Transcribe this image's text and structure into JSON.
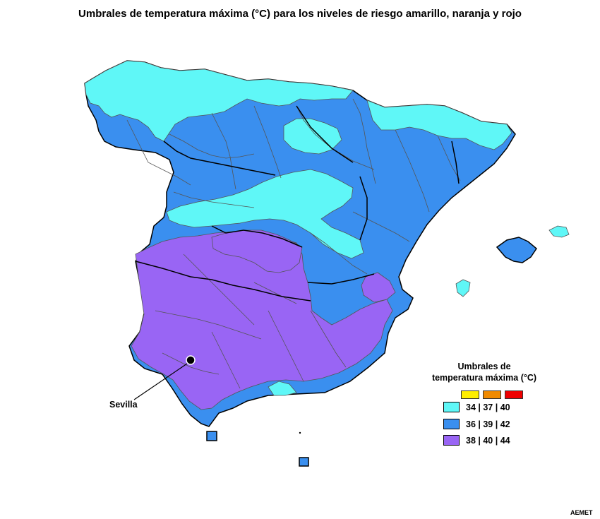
{
  "title": "Umbrales de temperatura máxima (°C) para los niveles de riesgo amarillo, naranja y rojo",
  "colors": {
    "cyan": "#5ff7f7",
    "blue": "#3a8fef",
    "purple": "#9965f4",
    "amarillo": "#ffee00",
    "naranja": "#f08a00",
    "rojo": "#ee0000",
    "border": "#000000"
  },
  "legend": {
    "title_line1": "Umbrales de",
    "title_line2": "temperatura máxima (°C)",
    "risk_levels": [
      "amarillo",
      "naranja",
      "rojo"
    ],
    "items": [
      {
        "label": "34 | 37 | 40",
        "color": "#5ff7f7"
      },
      {
        "label": "36 | 39 | 42",
        "color": "#3a8fef"
      },
      {
        "label": "38 | 40 | 44",
        "color": "#9965f4"
      }
    ]
  },
  "city": {
    "name": "Sevilla"
  },
  "source": "AEMET"
}
